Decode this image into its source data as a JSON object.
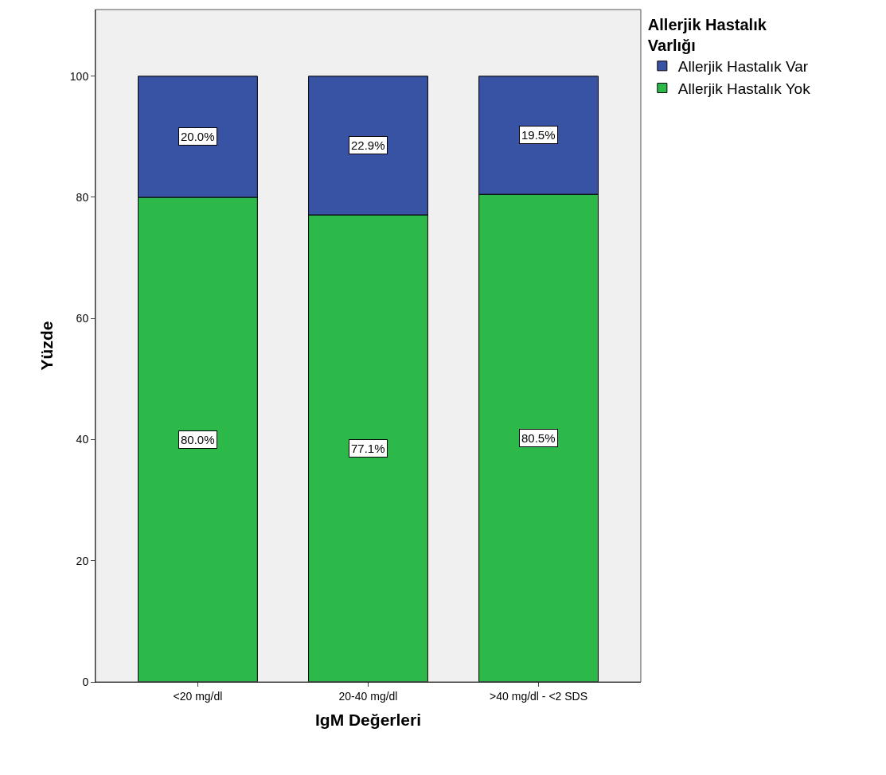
{
  "chart_data": {
    "type": "bar",
    "stacked": true,
    "xlabel": "IgM Değerleri",
    "ylabel": "Yüzde",
    "legend_title": "Allerjik Hastalık Varlığı",
    "categories": [
      "<20 mg/dl",
      "20-40 mg/dl",
      ">40 mg/dl - <2 SDS"
    ],
    "series": [
      {
        "name": "Allerjik Hastalık Yok",
        "color": "#2db84a",
        "values": [
          80.0,
          77.1,
          80.5
        ],
        "value_labels": [
          "80.0%",
          "77.1%",
          "80.5%"
        ]
      },
      {
        "name": "Allerjik Hastalık Var",
        "color": "#3953a4",
        "values": [
          20.0,
          22.9,
          19.5
        ],
        "value_labels": [
          "20.0%",
          "22.9%",
          "19.5%"
        ]
      }
    ],
    "ylim": [
      0,
      111
    ],
    "yticks": [
      0,
      20,
      40,
      60,
      80,
      100
    ],
    "grid": false,
    "legend": "top right"
  }
}
